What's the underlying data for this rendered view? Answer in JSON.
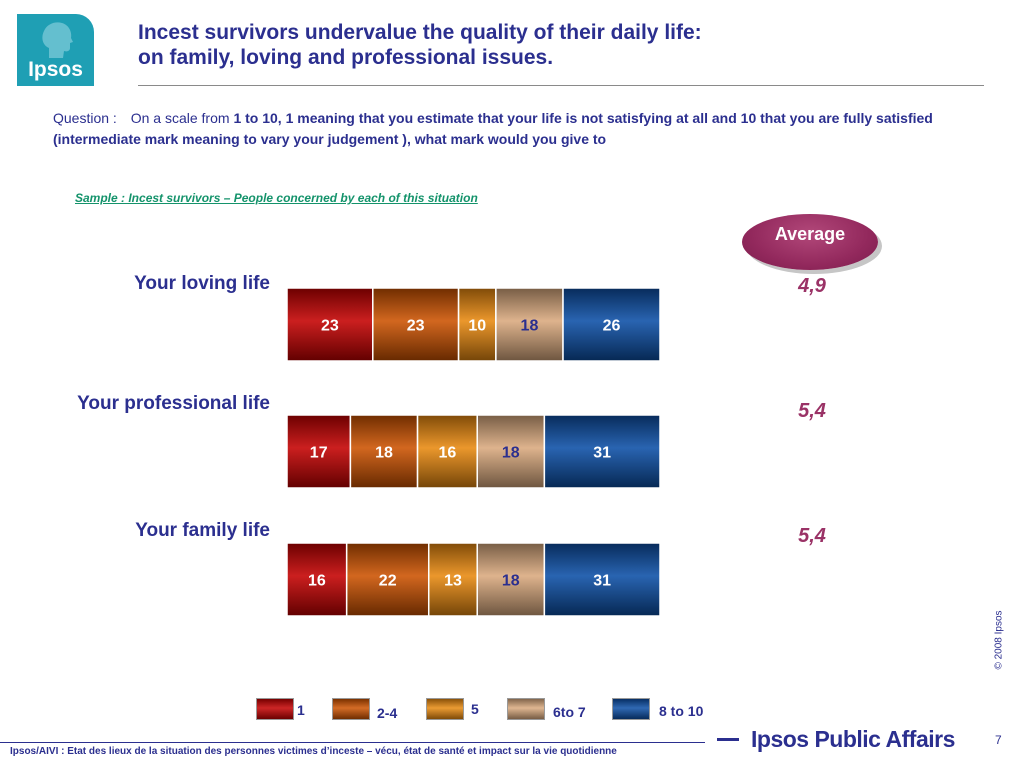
{
  "logo": {
    "text": "Ipsos"
  },
  "title": {
    "line1": "Incest survivors undervalue the quality of their daily life:",
    "line2": "on family, loving and professional issues."
  },
  "question": {
    "label": "Question :",
    "intro": "On a scale from",
    "text": "1 to 10, 1 meaning  that you estimate that your  life  is  not satisfying at all and 10 that  you are fully satisfied  (intermediate mark meaning to vary your judgement ), what mark would you give to"
  },
  "sample": "Sample : Incest survivors  – People concerned by each of this situation",
  "average": {
    "label": "Average",
    "values": [
      "4,9",
      "5,4",
      "5,4"
    ]
  },
  "colors": {
    "1": "#c40000",
    "2-4": "#cc5200",
    "5": "#e8890f",
    "6to 7": "#d9a97e",
    "8 to 10": "#0c4fa6"
  },
  "chart_data": {
    "type": "bar",
    "stacked": true,
    "orientation": "horizontal",
    "unit": "%",
    "categories": [
      "Your loving life",
      "Your professional life",
      "Your family life"
    ],
    "series": [
      {
        "name": "1",
        "values": [
          23,
          17,
          16
        ]
      },
      {
        "name": "2-4",
        "values": [
          23,
          18,
          22
        ]
      },
      {
        "name": "5",
        "values": [
          10,
          16,
          13
        ]
      },
      {
        "name": "6to 7",
        "values": [
          18,
          18,
          18
        ]
      },
      {
        "name": "8 to 10",
        "values": [
          26,
          31,
          31
        ]
      }
    ],
    "legend": "bottom"
  },
  "copyright": "© 2008 Ipsos",
  "footer": "Ipsos/AIVI : Etat des lieux de la situation des personnes victimes d’inceste – vécu, état de santé et impact sur la vie quotidienne",
  "brand": "Ipsos Public Affairs",
  "page_number": "7"
}
